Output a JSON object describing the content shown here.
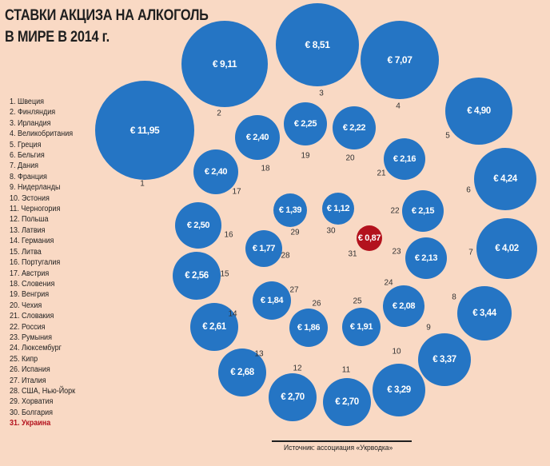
{
  "title_lines": [
    "СТАВКИ АКЦИЗА НА АЛКОГОЛЬ",
    "В МИРЕ В 2014 г."
  ],
  "source": "Источник: ассоциация «Укрводка»",
  "colors": {
    "background": "#f9d9c4",
    "bubble": "#2575c4",
    "highlight": "#b3121d"
  },
  "chart_data": {
    "type": "bubble",
    "currency": "€",
    "highlight_rank": 31,
    "items": [
      {
        "rank": 1,
        "country": "Швеция",
        "value": "11,95"
      },
      {
        "rank": 2,
        "country": "Финляндия",
        "value": "9,11"
      },
      {
        "rank": 3,
        "country": "Ирландия",
        "value": "8,51"
      },
      {
        "rank": 4,
        "country": "Великобритания",
        "value": "7,07"
      },
      {
        "rank": 5,
        "country": "Греция",
        "value": "4,90"
      },
      {
        "rank": 6,
        "country": "Бельгия",
        "value": "4,24"
      },
      {
        "rank": 7,
        "country": "Дания",
        "value": "4,02"
      },
      {
        "rank": 8,
        "country": "Франция",
        "value": "3,44"
      },
      {
        "rank": 9,
        "country": "Нидерланды",
        "value": "3,37"
      },
      {
        "rank": 10,
        "country": "Эстония",
        "value": "3,29"
      },
      {
        "rank": 11,
        "country": "Черногория",
        "value": "2,70"
      },
      {
        "rank": 12,
        "country": "Польша",
        "value": "2,70"
      },
      {
        "rank": 13,
        "country": "Латвия",
        "value": "2,68"
      },
      {
        "rank": 14,
        "country": "Германия",
        "value": "2,61"
      },
      {
        "rank": 15,
        "country": "Литва",
        "value": "2,56"
      },
      {
        "rank": 16,
        "country": "Португалия",
        "value": "2,50"
      },
      {
        "rank": 17,
        "country": "Австрия",
        "value": "2,40"
      },
      {
        "rank": 18,
        "country": "Словения",
        "value": "2,40"
      },
      {
        "rank": 19,
        "country": "Венгрия",
        "value": "2,25"
      },
      {
        "rank": 20,
        "country": "Чехия",
        "value": "2,22"
      },
      {
        "rank": 21,
        "country": "Словакия",
        "value": "2,16"
      },
      {
        "rank": 22,
        "country": "Россия",
        "value": "2,15"
      },
      {
        "rank": 23,
        "country": "Румыния",
        "value": "2,13"
      },
      {
        "rank": 24,
        "country": "Люксембург",
        "value": "2,08"
      },
      {
        "rank": 25,
        "country": "Кипр",
        "value": "1,91"
      },
      {
        "rank": 26,
        "country": "Испания",
        "value": "1,86"
      },
      {
        "rank": 27,
        "country": "Италия",
        "value": "1,84"
      },
      {
        "rank": 28,
        "country": "США, Нью-Йорк",
        "value": "1,77"
      },
      {
        "rank": 29,
        "country": "Хорватия",
        "value": "1,39"
      },
      {
        "rank": 30,
        "country": "Болгария",
        "value": "1,12"
      },
      {
        "rank": 31,
        "country": "Украина",
        "value": "0,87"
      }
    ]
  }
}
